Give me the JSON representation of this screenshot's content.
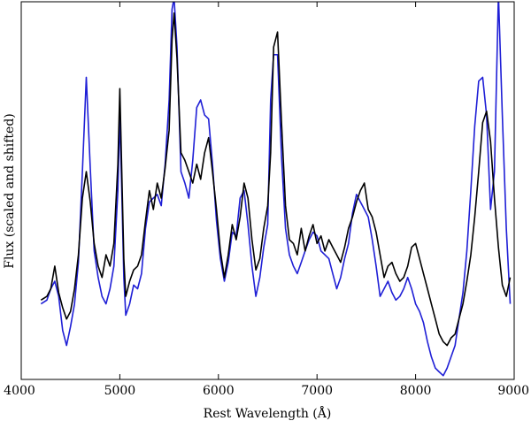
{
  "chart_data": {
    "type": "line",
    "title": "",
    "xlabel": "Rest Wavelength (Å)",
    "ylabel": "Flux (scaled and shifted)",
    "xlim": [
      4000,
      9000
    ],
    "ylim": [
      0,
      1
    ],
    "x_ticks": [
      4000,
      5000,
      6000,
      7000,
      8000,
      9000
    ],
    "x_tick_labels": [
      "4000",
      "5000",
      "6000",
      "7000",
      "8000",
      "9000"
    ],
    "y_ticks_shown": false,
    "grid": false,
    "legend": "none",
    "series": [
      {
        "color": "#000000",
        "x": [
          4200,
          4260,
          4300,
          4340,
          4380,
          4420,
          4460,
          4500,
          4540,
          4580,
          4620,
          4660,
          4700,
          4740,
          4780,
          4820,
          4860,
          4900,
          4940,
          4980,
          5000,
          5020,
          5040,
          5060,
          5100,
          5140,
          5180,
          5220,
          5260,
          5300,
          5340,
          5380,
          5420,
          5460,
          5500,
          5530,
          5550,
          5580,
          5620,
          5660,
          5700,
          5740,
          5780,
          5820,
          5860,
          5900,
          5940,
          5980,
          6020,
          6060,
          6100,
          6140,
          6180,
          6220,
          6260,
          6300,
          6340,
          6380,
          6420,
          6460,
          6500,
          6530,
          6560,
          6600,
          6640,
          6680,
          6720,
          6760,
          6800,
          6840,
          6880,
          6920,
          6960,
          7000,
          7040,
          7080,
          7120,
          7160,
          7200,
          7240,
          7280,
          7320,
          7360,
          7400,
          7440,
          7480,
          7520,
          7560,
          7600,
          7640,
          7680,
          7720,
          7760,
          7800,
          7840,
          7880,
          7920,
          7960,
          8000,
          8040,
          8080,
          8120,
          8160,
          8200,
          8240,
          8280,
          8320,
          8360,
          8400,
          8440,
          8480,
          8520,
          8560,
          8600,
          8640,
          8680,
          8720,
          8760,
          8800,
          8840,
          8880,
          8920,
          8960
        ],
        "y": [
          0.21,
          0.22,
          0.24,
          0.3,
          0.23,
          0.19,
          0.16,
          0.18,
          0.24,
          0.33,
          0.48,
          0.55,
          0.47,
          0.36,
          0.3,
          0.27,
          0.33,
          0.3,
          0.36,
          0.57,
          0.77,
          0.55,
          0.32,
          0.22,
          0.26,
          0.29,
          0.3,
          0.33,
          0.42,
          0.5,
          0.45,
          0.52,
          0.48,
          0.56,
          0.66,
          0.9,
          0.97,
          0.85,
          0.6,
          0.58,
          0.55,
          0.52,
          0.57,
          0.53,
          0.6,
          0.64,
          0.55,
          0.45,
          0.34,
          0.27,
          0.33,
          0.41,
          0.37,
          0.43,
          0.52,
          0.48,
          0.37,
          0.29,
          0.32,
          0.4,
          0.46,
          0.6,
          0.88,
          0.92,
          0.68,
          0.46,
          0.37,
          0.36,
          0.33,
          0.4,
          0.34,
          0.38,
          0.41,
          0.36,
          0.38,
          0.34,
          0.37,
          0.35,
          0.33,
          0.31,
          0.35,
          0.4,
          0.43,
          0.47,
          0.5,
          0.52,
          0.45,
          0.43,
          0.39,
          0.33,
          0.27,
          0.3,
          0.31,
          0.28,
          0.26,
          0.27,
          0.3,
          0.35,
          0.36,
          0.32,
          0.28,
          0.24,
          0.2,
          0.16,
          0.12,
          0.1,
          0.09,
          0.11,
          0.12,
          0.16,
          0.2,
          0.26,
          0.33,
          0.43,
          0.55,
          0.68,
          0.71,
          0.63,
          0.48,
          0.35,
          0.25,
          0.22,
          0.27
        ]
      },
      {
        "color": "#1f1fd6",
        "x": [
          4200,
          4260,
          4300,
          4340,
          4380,
          4420,
          4460,
          4500,
          4540,
          4580,
          4620,
          4660,
          4700,
          4740,
          4780,
          4820,
          4860,
          4900,
          4940,
          4980,
          5000,
          5020,
          5040,
          5060,
          5100,
          5140,
          5180,
          5220,
          5260,
          5300,
          5340,
          5380,
          5420,
          5460,
          5500,
          5530,
          5550,
          5580,
          5620,
          5660,
          5700,
          5740,
          5780,
          5820,
          5860,
          5900,
          5940,
          5980,
          6020,
          6060,
          6100,
          6140,
          6180,
          6220,
          6260,
          6300,
          6340,
          6380,
          6420,
          6460,
          6500,
          6530,
          6560,
          6600,
          6640,
          6680,
          6720,
          6760,
          6800,
          6840,
          6880,
          6920,
          6960,
          7000,
          7040,
          7080,
          7120,
          7160,
          7200,
          7240,
          7280,
          7320,
          7360,
          7400,
          7440,
          7480,
          7520,
          7560,
          7600,
          7640,
          7680,
          7720,
          7760,
          7800,
          7840,
          7880,
          7920,
          7960,
          8000,
          8040,
          8080,
          8120,
          8160,
          8200,
          8240,
          8280,
          8320,
          8360,
          8400,
          8440,
          8480,
          8520,
          8560,
          8600,
          8640,
          8680,
          8720,
          8760,
          8800,
          8840,
          8880,
          8920,
          8960
        ],
        "y": [
          0.2,
          0.21,
          0.24,
          0.26,
          0.22,
          0.13,
          0.09,
          0.14,
          0.2,
          0.31,
          0.55,
          0.8,
          0.56,
          0.34,
          0.27,
          0.22,
          0.2,
          0.24,
          0.3,
          0.5,
          0.7,
          0.5,
          0.27,
          0.17,
          0.2,
          0.25,
          0.24,
          0.28,
          0.4,
          0.47,
          0.48,
          0.49,
          0.46,
          0.57,
          0.74,
          0.98,
          1.01,
          0.88,
          0.55,
          0.52,
          0.48,
          0.58,
          0.72,
          0.74,
          0.7,
          0.69,
          0.57,
          0.42,
          0.32,
          0.26,
          0.31,
          0.39,
          0.38,
          0.48,
          0.5,
          0.41,
          0.3,
          0.22,
          0.27,
          0.35,
          0.41,
          0.74,
          0.86,
          0.86,
          0.59,
          0.4,
          0.33,
          0.3,
          0.28,
          0.31,
          0.34,
          0.37,
          0.39,
          0.38,
          0.34,
          0.33,
          0.32,
          0.28,
          0.24,
          0.27,
          0.32,
          0.36,
          0.44,
          0.49,
          0.47,
          0.45,
          0.43,
          0.37,
          0.3,
          0.22,
          0.24,
          0.26,
          0.23,
          0.21,
          0.22,
          0.24,
          0.27,
          0.24,
          0.2,
          0.18,
          0.15,
          0.1,
          0.06,
          0.03,
          0.02,
          0.01,
          0.03,
          0.06,
          0.09,
          0.16,
          0.23,
          0.34,
          0.5,
          0.67,
          0.79,
          0.8,
          0.7,
          0.45,
          0.55,
          1.02,
          0.7,
          0.4,
          0.2
        ]
      }
    ]
  }
}
